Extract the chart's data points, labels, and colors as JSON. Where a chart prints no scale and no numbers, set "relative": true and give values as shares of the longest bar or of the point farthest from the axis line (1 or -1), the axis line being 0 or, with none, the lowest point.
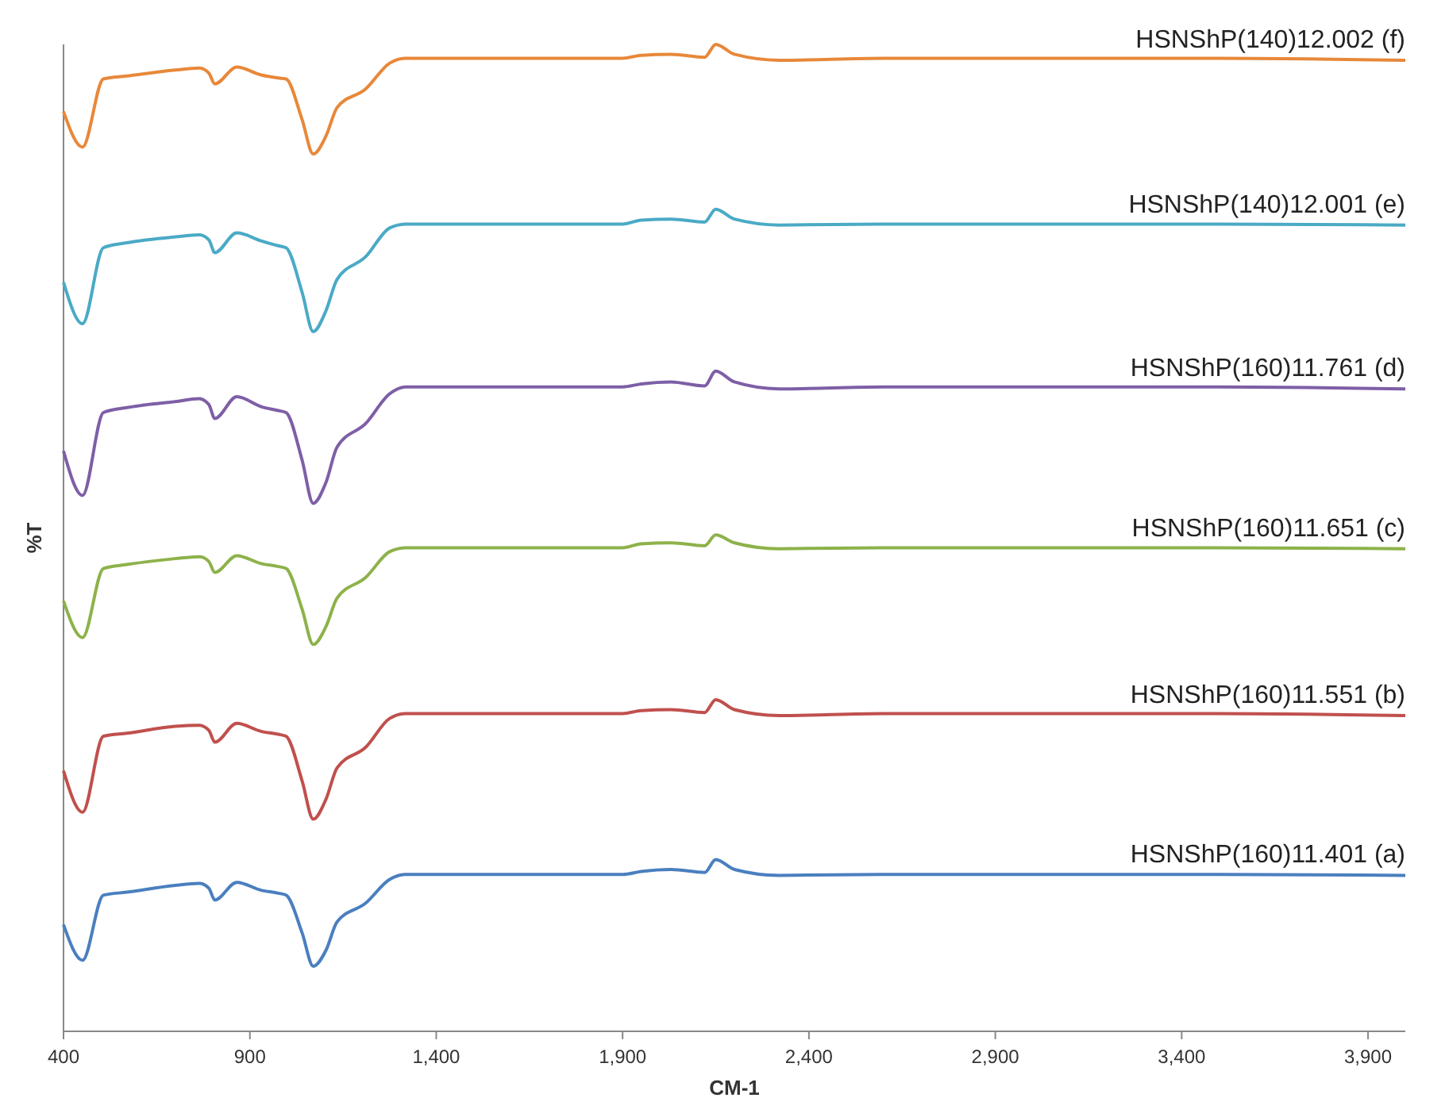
{
  "chart_data": {
    "type": "line",
    "relative": true,
    "xlabel": "CM-1",
    "ylabel": "%T",
    "x": [
      400,
      451,
      507,
      570,
      700,
      764,
      790,
      806,
      865,
      930,
      976,
      997,
      1040,
      1070,
      1104,
      1134,
      1211,
      1275,
      1318,
      1600,
      1900,
      1950,
      2030,
      2120,
      2150,
      2200,
      2320,
      2600,
      3000,
      3500,
      4000
    ],
    "xlim": [
      400,
      4000
    ],
    "xticks": [
      400,
      900,
      {
        "value": 1400,
        "label": "1,400"
      },
      {
        "value": 1900,
        "label": "1,900"
      },
      {
        "value": 2400,
        "label": "2,400"
      },
      {
        "value": 2900,
        "label": "2,900"
      },
      {
        "value": 3400,
        "label": "3,400"
      },
      {
        "value": 3900,
        "label": "3,900"
      }
    ],
    "series": [
      {
        "name": "HSNShP(160)11.401 (a)",
        "color": "#4a7fbf",
        "values": [
          0.108,
          0.072,
          0.138,
          0.141,
          0.148,
          0.15,
          0.145,
          0.133,
          0.151,
          0.143,
          0.14,
          0.138,
          0.1,
          0.066,
          0.082,
          0.111,
          0.13,
          0.154,
          0.159,
          0.159,
          0.159,
          0.162,
          0.164,
          0.161,
          0.174,
          0.164,
          0.158,
          0.159,
          0.159,
          0.159,
          0.158
        ]
      },
      {
        "name": "HSNShP(160)11.551 (b)",
        "color": "#c0504d",
        "values": [
          0.264,
          0.222,
          0.299,
          0.302,
          0.309,
          0.31,
          0.305,
          0.293,
          0.312,
          0.304,
          0.301,
          0.299,
          0.254,
          0.215,
          0.235,
          0.267,
          0.288,
          0.317,
          0.322,
          0.322,
          0.322,
          0.325,
          0.326,
          0.323,
          0.336,
          0.326,
          0.32,
          0.322,
          0.322,
          0.322,
          0.32
        ]
      },
      {
        "name": "HSNShP(160)11.651 (c)",
        "color": "#8db24a",
        "values": [
          0.436,
          0.399,
          0.469,
          0.473,
          0.479,
          0.481,
          0.476,
          0.465,
          0.482,
          0.474,
          0.471,
          0.469,
          0.428,
          0.392,
          0.41,
          0.439,
          0.46,
          0.486,
          0.49,
          0.49,
          0.49,
          0.494,
          0.495,
          0.492,
          0.503,
          0.495,
          0.489,
          0.49,
          0.49,
          0.49,
          0.489
        ]
      },
      {
        "name": "HSNShP(160)11.761 (d)",
        "color": "#7e5fa6",
        "values": [
          0.588,
          0.543,
          0.627,
          0.632,
          0.638,
          0.641,
          0.635,
          0.621,
          0.643,
          0.633,
          0.629,
          0.627,
          0.579,
          0.535,
          0.556,
          0.592,
          0.616,
          0.646,
          0.653,
          0.653,
          0.653,
          0.656,
          0.658,
          0.654,
          0.669,
          0.658,
          0.651,
          0.653,
          0.653,
          0.653,
          0.651
        ]
      },
      {
        "name": "HSNShP(140)12.001 (e)",
        "color": "#4aaac6",
        "values": [
          0.759,
          0.717,
          0.794,
          0.799,
          0.805,
          0.807,
          0.802,
          0.789,
          0.809,
          0.801,
          0.796,
          0.794,
          0.749,
          0.709,
          0.73,
          0.762,
          0.785,
          0.814,
          0.818,
          0.818,
          0.818,
          0.822,
          0.823,
          0.82,
          0.833,
          0.823,
          0.817,
          0.818,
          0.818,
          0.818,
          0.817
        ]
      },
      {
        "name": "HSNShP(140)12.002 (f)",
        "color": "#e8883a",
        "values": [
          0.932,
          0.896,
          0.965,
          0.968,
          0.974,
          0.976,
          0.971,
          0.96,
          0.977,
          0.969,
          0.966,
          0.965,
          0.924,
          0.889,
          0.907,
          0.936,
          0.955,
          0.981,
          0.986,
          0.986,
          0.986,
          0.989,
          0.99,
          0.987,
          1.0,
          0.99,
          0.984,
          0.986,
          0.986,
          0.986,
          0.984
        ]
      }
    ]
  }
}
